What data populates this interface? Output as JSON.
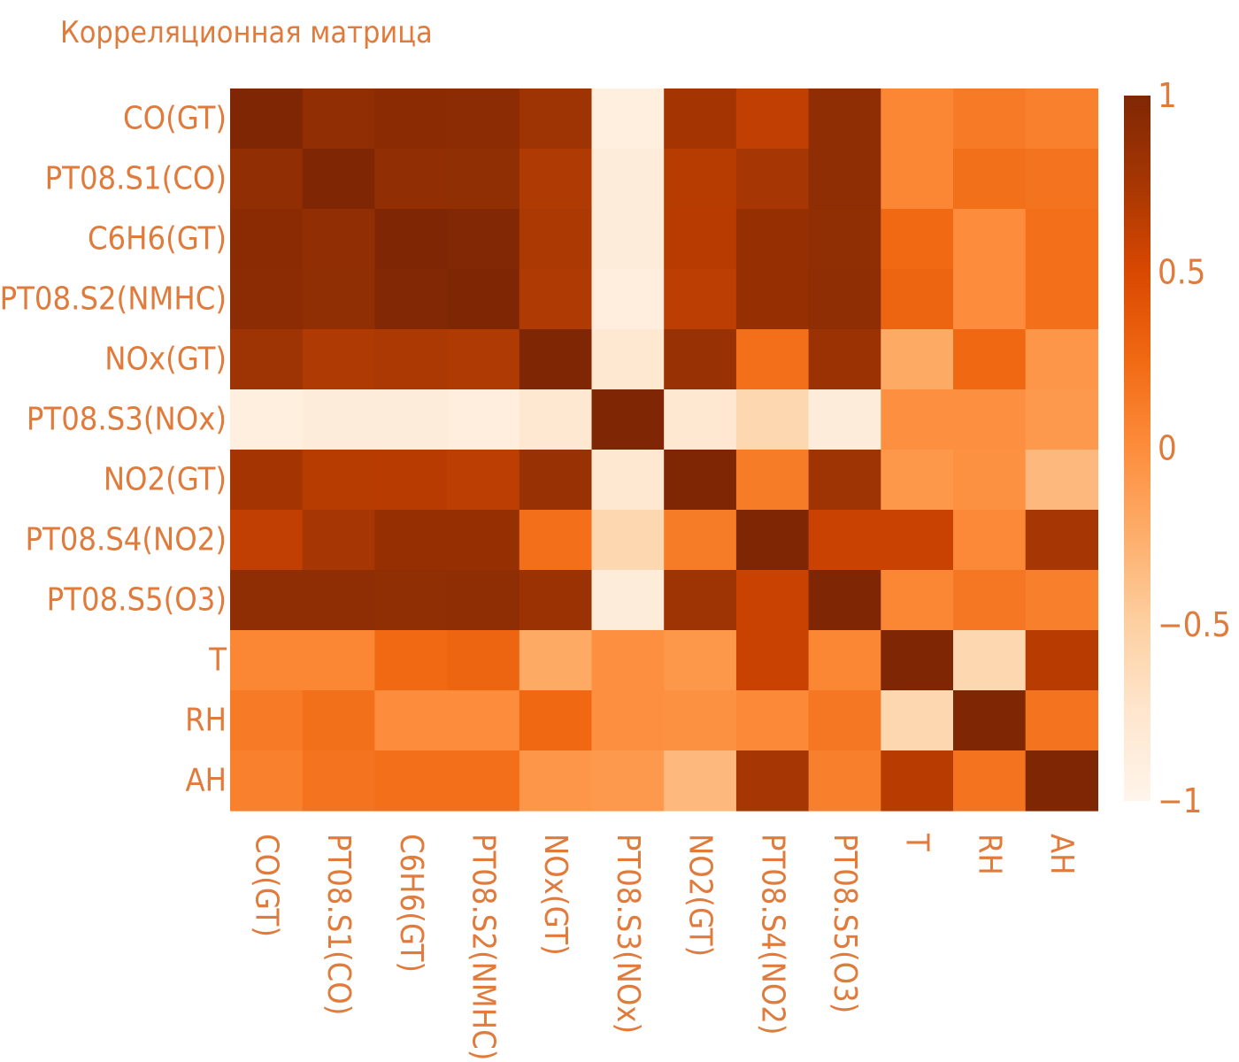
{
  "chart_data": {
    "type": "heatmap",
    "title": "Корреляционная матрица",
    "xlabel": "",
    "ylabel": "",
    "labels": [
      "CO(GT)",
      "PT08.S1(CO)",
      "C6H6(GT)",
      "PT08.S2(NMHC)",
      "NOx(GT)",
      "PT08.S3(NOx)",
      "NO2(GT)",
      "PT08.S4(NO2)",
      "PT08.S5(O3)",
      "T",
      "RH",
      "AH"
    ],
    "matrix": [
      [
        1.0,
        0.88,
        0.93,
        0.92,
        0.8,
        -0.9,
        0.76,
        0.62,
        0.9,
        0.04,
        0.13,
        0.09
      ],
      [
        0.88,
        1.0,
        0.88,
        0.89,
        0.7,
        -0.85,
        0.67,
        0.75,
        0.9,
        0.05,
        0.2,
        0.18
      ],
      [
        0.93,
        0.88,
        1.0,
        0.98,
        0.72,
        -0.85,
        0.66,
        0.85,
        0.89,
        0.25,
        0.0,
        0.21
      ],
      [
        0.92,
        0.89,
        0.98,
        1.0,
        0.7,
        -0.88,
        0.64,
        0.85,
        0.9,
        0.28,
        0.0,
        0.21
      ],
      [
        0.8,
        0.7,
        0.72,
        0.7,
        1.0,
        -0.78,
        0.84,
        0.21,
        0.82,
        -0.22,
        0.26,
        -0.07
      ],
      [
        -0.9,
        -0.85,
        -0.85,
        -0.88,
        -0.78,
        1.0,
        -0.78,
        -0.58,
        -0.85,
        -0.02,
        -0.02,
        -0.09
      ],
      [
        0.76,
        0.67,
        0.66,
        0.64,
        0.84,
        -0.78,
        1.0,
        0.12,
        0.8,
        -0.08,
        -0.03,
        -0.33
      ],
      [
        0.62,
        0.75,
        0.85,
        0.85,
        0.21,
        -0.58,
        0.12,
        1.0,
        0.58,
        0.58,
        0.03,
        0.75
      ],
      [
        0.9,
        0.9,
        0.89,
        0.9,
        0.82,
        -0.85,
        0.8,
        0.58,
        1.0,
        0.04,
        0.15,
        0.1
      ],
      [
        0.04,
        0.05,
        0.25,
        0.28,
        -0.22,
        -0.02,
        -0.08,
        0.58,
        0.04,
        1.0,
        -0.58,
        0.66
      ],
      [
        0.13,
        0.2,
        0.0,
        0.0,
        0.26,
        -0.02,
        -0.03,
        0.03,
        0.15,
        -0.58,
        1.0,
        0.18
      ],
      [
        0.09,
        0.18,
        0.21,
        0.21,
        -0.07,
        -0.09,
        -0.33,
        0.75,
        0.1,
        0.66,
        0.18,
        1.0
      ]
    ],
    "colorbar": {
      "min": -1,
      "max": 1,
      "ticks": [
        1,
        0.5,
        0,
        -0.5,
        -1
      ],
      "tick_labels": [
        "1",
        "0.5",
        "0",
        "−0.5",
        "−1"
      ],
      "colormap": "Oranges"
    },
    "grid": false
  }
}
